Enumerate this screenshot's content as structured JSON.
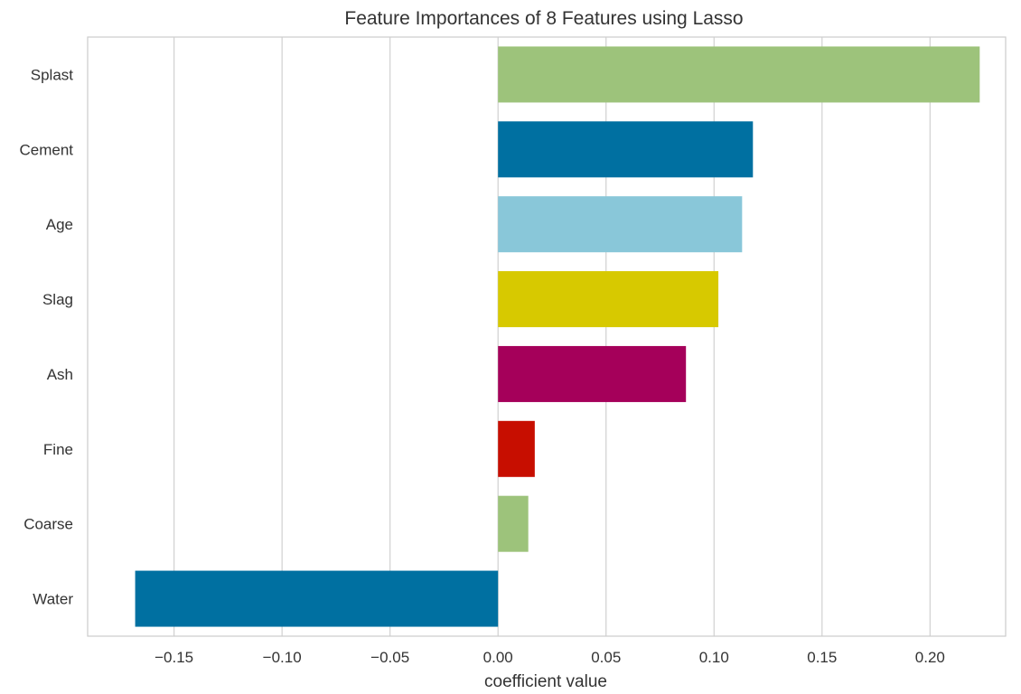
{
  "chart_data": {
    "type": "bar",
    "orientation": "horizontal",
    "title": "Feature Importances of 8 Features using Lasso",
    "xlabel": "coefficient value",
    "ylabel": "",
    "xlim": [
      -0.19,
      0.235
    ],
    "xticks": [
      -0.15,
      -0.1,
      -0.05,
      0.0,
      0.05,
      0.1,
      0.15,
      0.2
    ],
    "xtick_labels": [
      "−0.15",
      "−0.10",
      "−0.05",
      "0.00",
      "0.05",
      "0.10",
      "0.15",
      "0.20"
    ],
    "grid": true,
    "categories": [
      "Splast",
      "Cement",
      "Age",
      "Slag",
      "Ash",
      "Fine",
      "Coarse",
      "Water"
    ],
    "values": [
      0.223,
      0.118,
      0.113,
      0.102,
      0.087,
      0.017,
      0.014,
      -0.168
    ],
    "colors": [
      "#9dc37b",
      "#0070a1",
      "#89c7d9",
      "#d7c900",
      "#a5005a",
      "#c70e00",
      "#9dc37b",
      "#0070a1"
    ]
  }
}
